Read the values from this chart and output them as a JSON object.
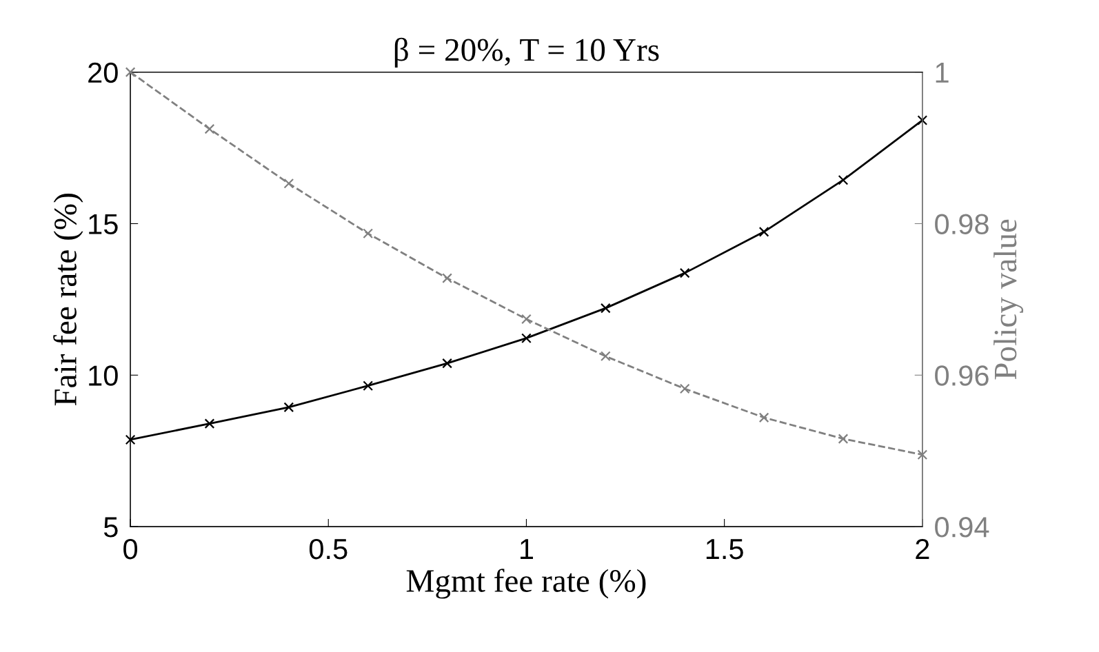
{
  "chart_data": {
    "type": "line",
    "title": "β = 20%, T = 10 Yrs",
    "xlabel": "Mgmt fee rate (%)",
    "ylabel": "Fair fee rate (%)",
    "y2label": "Policy value",
    "x": [
      0,
      0.2,
      0.4,
      0.6,
      0.8,
      1.0,
      1.2,
      1.4,
      1.6,
      1.8,
      2.0
    ],
    "series": [
      {
        "color": "#000000",
        "line_style": "solid",
        "values": [
          7.87,
          8.4,
          8.94,
          9.65,
          10.39,
          11.22,
          12.21,
          13.37,
          14.73,
          16.44,
          18.41
        ]
      },
      {
        "color": "#808080",
        "line_style": "dashed",
        "axis": "y2",
        "values": [
          1.0,
          0.9925,
          0.9853,
          0.9787,
          0.9728,
          0.9674,
          0.9625,
          0.9582,
          0.9544,
          0.9516,
          0.9495
        ]
      }
    ],
    "marker": "cross",
    "grid": false,
    "legend": false,
    "xlim": [
      0,
      2
    ],
    "xticks": [
      0,
      0.5,
      1,
      1.5,
      2
    ],
    "ylim": [
      5,
      20
    ],
    "yticks": [
      5,
      10,
      15,
      20
    ],
    "y2lim": [
      0.94,
      1
    ],
    "y2ticks": [
      0.94,
      0.96,
      0.98,
      1
    ]
  }
}
